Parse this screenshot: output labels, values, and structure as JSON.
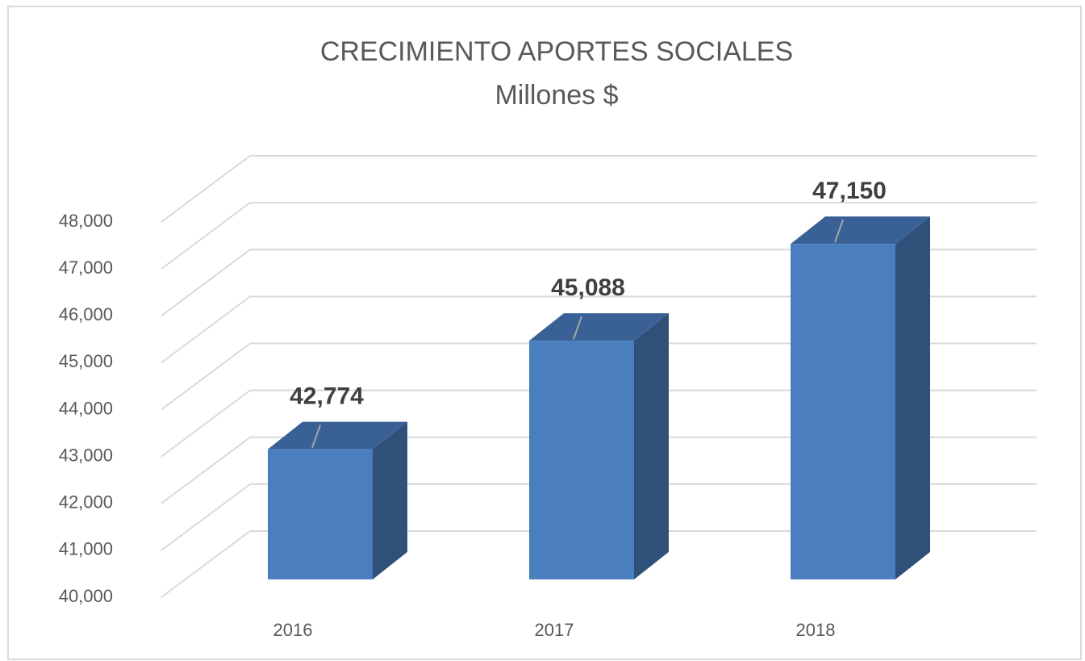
{
  "chart_data": {
    "type": "bar3d",
    "title": "CRECIMIENTO APORTES SOCIALES",
    "subtitle": "Millones $",
    "categories": [
      "2016",
      "2017",
      "2018"
    ],
    "values": [
      42774,
      45088,
      47150
    ],
    "value_labels": [
      "42,774",
      "45,088",
      "47,150"
    ],
    "color": "#4a7ebf",
    "ylim": [
      40000,
      48000
    ],
    "yticks": [
      {
        "value": 40000,
        "label": "40,000"
      },
      {
        "value": 41000,
        "label": "41,000"
      },
      {
        "value": 42000,
        "label": "42,000"
      },
      {
        "value": 43000,
        "label": "43,000"
      },
      {
        "value": 44000,
        "label": "44,000"
      },
      {
        "value": 45000,
        "label": "45,000"
      },
      {
        "value": 46000,
        "label": "46,000"
      },
      {
        "value": 47000,
        "label": "47,000"
      },
      {
        "value": 48000,
        "label": "48,000"
      }
    ],
    "grid": true
  }
}
